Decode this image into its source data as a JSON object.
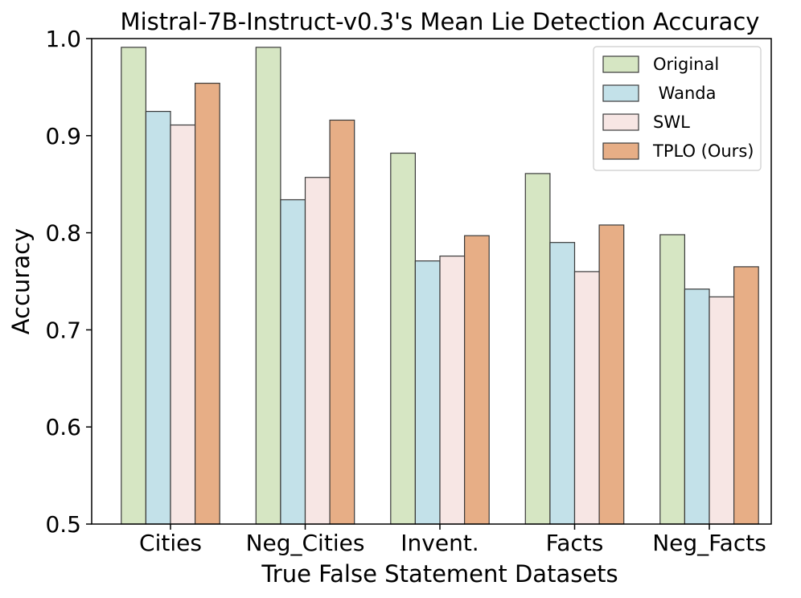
{
  "chart_data": {
    "type": "bar",
    "title": "Mistral-7B-Instruct-v0.3's Mean Lie Detection Accuracy",
    "xlabel": "True False Statement Datasets",
    "ylabel": "Accuracy",
    "ylim": [
      0.5,
      1.0
    ],
    "yticks": [
      0.5,
      0.6,
      0.7,
      0.8,
      0.9,
      1.0
    ],
    "ytick_labels": [
      "0.5",
      "0.6",
      "0.7",
      "0.8",
      "0.9",
      "1.0"
    ],
    "categories": [
      "Cities",
      "Neg_Cities",
      "Invent.",
      "Facts",
      "Neg_Facts"
    ],
    "series": [
      {
        "name": "Original",
        "color": "#d6e6c3",
        "values": [
          0.991,
          0.991,
          0.882,
          0.861,
          0.798
        ]
      },
      {
        "name": " Wanda",
        "color": "#c3e1e9",
        "values": [
          0.925,
          0.834,
          0.771,
          0.79,
          0.742
        ]
      },
      {
        "name": "SWL",
        "color": "#f7e6e4",
        "values": [
          0.911,
          0.857,
          0.776,
          0.76,
          0.734
        ]
      },
      {
        "name": "TPLO (Ours)",
        "color": "#e7ae86",
        "values": [
          0.954,
          0.916,
          0.797,
          0.808,
          0.765
        ]
      }
    ],
    "legend_location": "top-right",
    "grid": false
  }
}
